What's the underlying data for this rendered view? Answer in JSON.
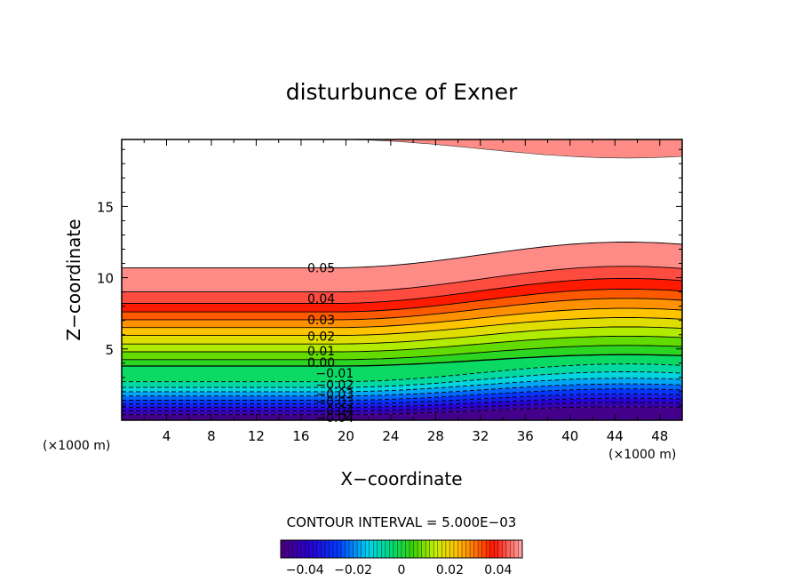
{
  "chart_data": {
    "type": "contour",
    "title": "disturbunce of Exner",
    "xlabel": "X−coordinate",
    "ylabel": "Z−coordinate",
    "x_unit": "(×1000 m)",
    "y_unit": "(×1000 m)",
    "xlim": [
      0,
      50
    ],
    "ylim": [
      0,
      19.7
    ],
    "x_ticks": [
      {
        "value": 4,
        "label": "4"
      },
      {
        "value": 8,
        "label": "8"
      },
      {
        "value": 12,
        "label": "12"
      },
      {
        "value": 16,
        "label": "16"
      },
      {
        "value": 20,
        "label": "20"
      },
      {
        "value": 24,
        "label": "24"
      },
      {
        "value": 28,
        "label": "28"
      },
      {
        "value": 32,
        "label": "32"
      },
      {
        "value": 36,
        "label": "36"
      },
      {
        "value": 40,
        "label": "40"
      },
      {
        "value": 44,
        "label": "44"
      },
      {
        "value": 48,
        "label": "48"
      }
    ],
    "y_ticks": [
      {
        "value": 5,
        "label": "5"
      },
      {
        "value": 10,
        "label": "10"
      },
      {
        "value": 15,
        "label": "15"
      }
    ],
    "contour_interval_text": "CONTOUR INTERVAL = 5.000E−03",
    "contour_interval": 0.005,
    "value_range": [
      -0.05,
      0.05
    ],
    "top_band": {
      "min_height": 18.4,
      "max_height": 19.7
    },
    "surface_ridge_x": 45,
    "surface_trough_x": 19,
    "contour_levels": [
      {
        "value": -0.045,
        "z_min": 0.4,
        "z_max": 0.95
      },
      {
        "value": -0.04,
        "z_min": 0.65,
        "z_max": 1.25
      },
      {
        "value": -0.035,
        "z_min": 0.9,
        "z_max": 1.55
      },
      {
        "value": -0.03,
        "z_min": 1.15,
        "z_max": 1.85
      },
      {
        "value": -0.025,
        "z_min": 1.4,
        "z_max": 2.2
      },
      {
        "value": -0.02,
        "z_min": 1.7,
        "z_max": 2.55
      },
      {
        "value": -0.015,
        "z_min": 2.0,
        "z_max": 2.95
      },
      {
        "value": -0.01,
        "z_min": 2.3,
        "z_max": 3.4
      },
      {
        "value": -0.005,
        "z_min": 2.7,
        "z_max": 3.95
      },
      {
        "value": 0.0,
        "z_min": 3.8,
        "z_max": 4.6
      },
      {
        "value": 0.005,
        "z_min": 4.25,
        "z_max": 5.25
      },
      {
        "value": 0.01,
        "z_min": 4.8,
        "z_max": 5.9
      },
      {
        "value": 0.015,
        "z_min": 5.35,
        "z_max": 6.55
      },
      {
        "value": 0.02,
        "z_min": 5.95,
        "z_max": 7.2
      },
      {
        "value": 0.025,
        "z_min": 6.5,
        "z_max": 7.85
      },
      {
        "value": 0.03,
        "z_min": 7.05,
        "z_max": 8.55
      },
      {
        "value": 0.035,
        "z_min": 7.6,
        "z_max": 9.2
      },
      {
        "value": 0.04,
        "z_min": 8.2,
        "z_max": 9.95
      },
      {
        "value": 0.045,
        "z_min": 9.0,
        "z_max": 10.8
      },
      {
        "value": 0.05,
        "z_min": 10.7,
        "z_max": 12.5
      }
    ],
    "contour_labels": [
      {
        "text": "0.05",
        "x": 17.8,
        "z": 10.7
      },
      {
        "text": "0.04",
        "x": 17.8,
        "z": 8.55
      },
      {
        "text": "0.03",
        "x": 17.8,
        "z": 7.05
      },
      {
        "text": "0.02",
        "x": 17.8,
        "z": 5.9
      },
      {
        "text": "0.01",
        "x": 17.8,
        "z": 4.85
      },
      {
        "text": "0.00",
        "x": 17.8,
        "z": 4.05
      },
      {
        "text": "−0.01",
        "x": 19.0,
        "z": 3.3
      },
      {
        "text": "−0.02",
        "x": 19.0,
        "z": 2.5
      },
      {
        "text": "−0.03",
        "x": 19.0,
        "z": 1.85
      },
      {
        "text": "−0.03",
        "x": 19.0,
        "z": 1.3
      },
      {
        "text": "−0.04",
        "x": 19.0,
        "z": 0.7
      },
      {
        "text": "−0.04",
        "x": 19.0,
        "z": 0.2
      }
    ],
    "colorbar": {
      "min": -0.05,
      "max": 0.05,
      "ticks": [
        {
          "value": -0.04,
          "label": "−0.04"
        },
        {
          "value": -0.02,
          "label": "−0.02"
        },
        {
          "value": 0,
          "label": "0"
        },
        {
          "value": 0.02,
          "label": "0.02"
        },
        {
          "value": 0.04,
          "label": "0.04"
        }
      ]
    }
  }
}
